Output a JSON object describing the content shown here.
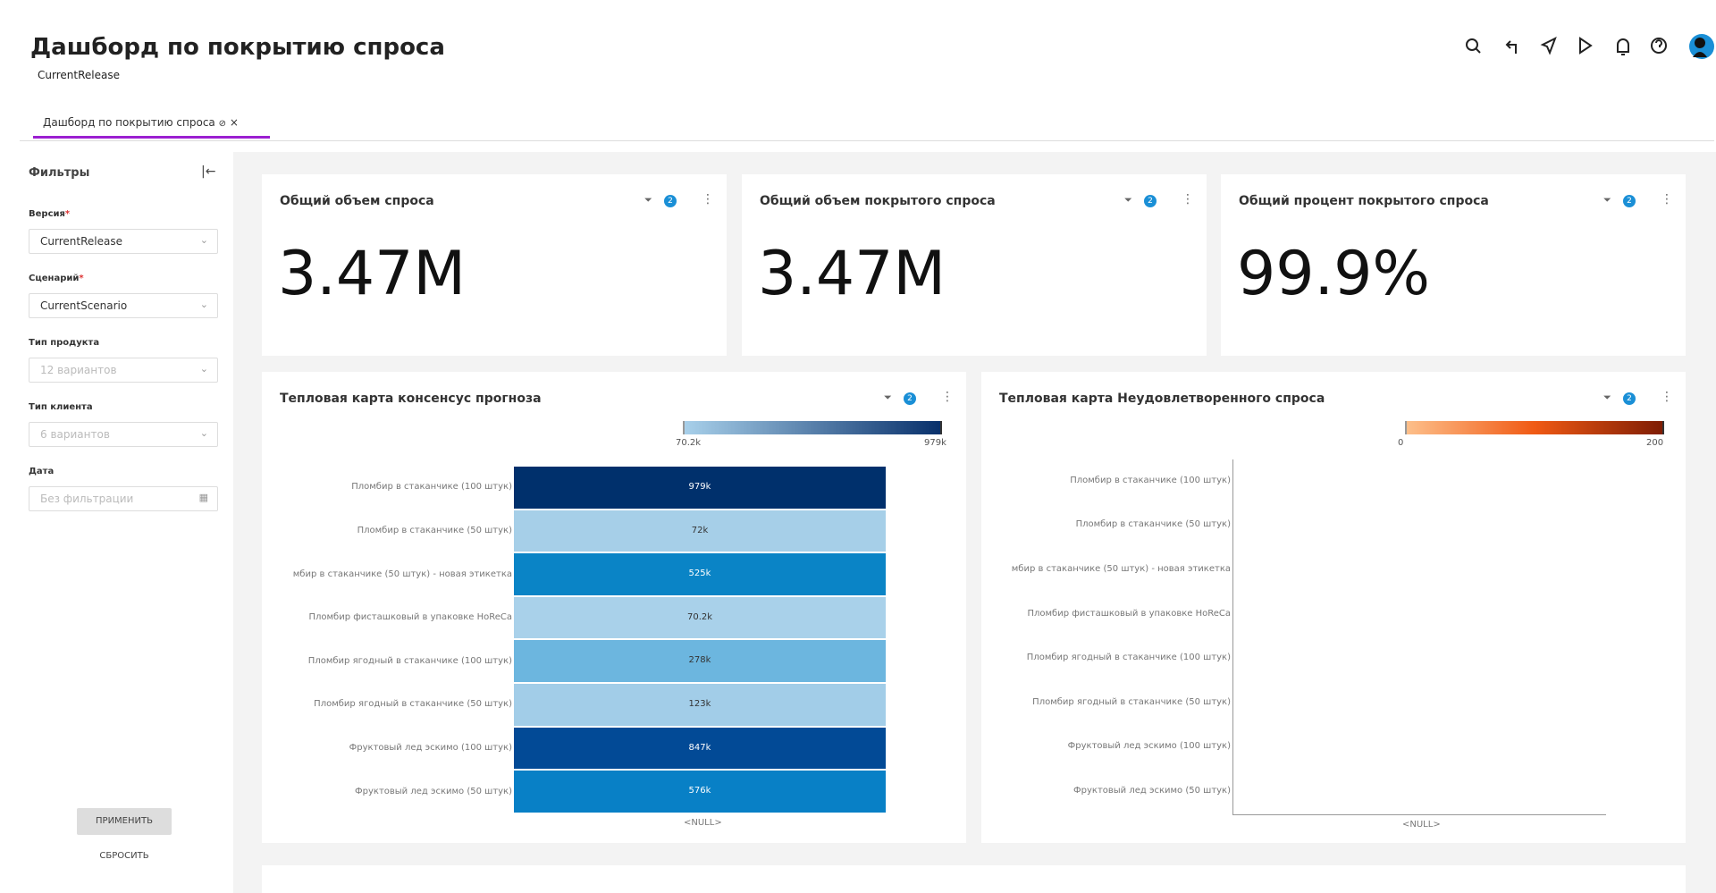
{
  "header": {
    "title": "Дашборд по покрытию спроса",
    "release": "CurrentRelease"
  },
  "tab": {
    "label": "Дашборд по покрытию спроса",
    "close": "×"
  },
  "filters": {
    "title": "Фильтры",
    "fields": [
      {
        "label": "Версия",
        "required": "*",
        "value": "CurrentRelease",
        "active": true,
        "icon": "select"
      },
      {
        "label": "Сценарий",
        "required": "*",
        "value": "CurrentScenario",
        "active": true,
        "icon": "select"
      },
      {
        "label": "Тип продукта",
        "value": "12 вариантов",
        "active": false,
        "icon": "select"
      },
      {
        "label": "Тип клиента",
        "value": "6 вариантов",
        "active": false,
        "icon": "select"
      },
      {
        "label": "Дата",
        "value": "Без фильтрации",
        "active": false,
        "icon": "date"
      }
    ],
    "apply": "ПРИМЕНИТЬ",
    "reset": "СБРОСИТЬ"
  },
  "kpis": [
    {
      "title": "Общий объем спроса",
      "badge": "2",
      "value": "3.47M"
    },
    {
      "title": "Общий объем покрытого спроса",
      "badge": "2",
      "value": "3.47M"
    },
    {
      "title": "Общий процент покрытого спроса",
      "badge": "2",
      "value": "99.9%"
    }
  ],
  "heatmaps": [
    {
      "title": "Тепловая карта консенсус прогноза",
      "badge": "2",
      "scale_min": "70.2k",
      "scale_max": "979k",
      "scale_colors": [
        "#a8d0ea",
        "#08306b"
      ],
      "rows": [
        "Пломбир в стаканчике (100 штук)",
        "Пломбир в стаканчике (50 штук)",
        "мбир в стаканчике (50 штук) - новая этикетка",
        "Пломбир фисташковый в упаковке HoReCa",
        "Пломбир ягодный в стаканчике (100 штук)",
        "Пломбир ягодный в стаканчике (50 штук)",
        "Фруктовый лед эскимо (100 штук)",
        "Фруктовый лед эскимо (50 штук)"
      ],
      "cells": [
        "979k",
        "72k",
        "525k",
        "70.2k",
        "278k",
        "123k",
        "847k",
        "576k"
      ],
      "cell_colors": [
        "#00306c",
        "#a6cfe8",
        "#0a84c6",
        "#a9d1ea",
        "#6cb6df",
        "#a2cde8",
        "#024a96",
        "#0880c6"
      ],
      "x_label": "<NULL>"
    },
    {
      "title": "Тепловая карта Неудовлетворенного спроса",
      "badge": "2",
      "scale_min": "0",
      "scale_max": "200",
      "scale_colors": [
        "#fdbf8a",
        "#f05a14",
        "#7f1d04"
      ],
      "rows": [
        "Пломбир в стаканчике (100 штук)",
        "Пломбир в стаканчике (50 штук)",
        "мбир в стаканчике (50 штук) - новая этикетка",
        "Пломбир фисташковый в упаковке HoReCa",
        "Пломбир ягодный в стаканчике (100 штук)",
        "Пломбир ягодный в стаканчике (50 штук)",
        "Фруктовый лед эскимо (100 штук)",
        "Фруктовый лед эскимо (50 штук)"
      ],
      "cells": [],
      "cell_colors": [],
      "x_label": "<NULL>"
    }
  ]
}
